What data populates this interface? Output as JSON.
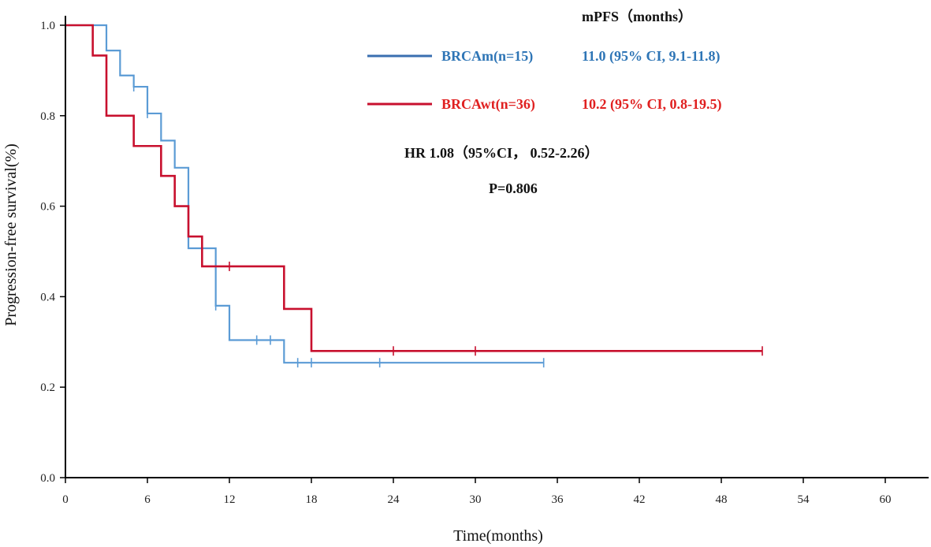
{
  "chart_data": {
    "type": "line",
    "subtype": "kaplan-meier",
    "xlabel": "Time(months)",
    "ylabel": "Progression-free survival(%)",
    "xlim": [
      0,
      60
    ],
    "ylim": [
      0,
      1.0
    ],
    "xticks": [
      0,
      6,
      12,
      18,
      24,
      30,
      36,
      42,
      48,
      54,
      60
    ],
    "yticks": [
      "0.0",
      "0.2",
      "0.4",
      "0.6",
      "0.8",
      "1.0"
    ],
    "grid": false,
    "series": [
      {
        "name": "BRCAm(n=15)",
        "color": "#5b9bd5",
        "steps": [
          [
            0,
            1.0
          ],
          [
            3,
            0.944
          ],
          [
            4,
            0.889
          ],
          [
            5,
            0.864
          ],
          [
            6,
            0.805
          ],
          [
            7,
            0.745
          ],
          [
            8,
            0.685
          ],
          [
            9,
            0.507
          ],
          [
            11,
            0.38
          ],
          [
            12,
            0.304
          ],
          [
            16,
            0.254
          ]
        ],
        "end": 35,
        "censored": [
          [
            5,
            0.864
          ],
          [
            6,
            0.805
          ],
          [
            10,
            0.507
          ],
          [
            11,
            0.38
          ],
          [
            14,
            0.304
          ],
          [
            15,
            0.304
          ],
          [
            17,
            0.254
          ],
          [
            18,
            0.254
          ],
          [
            23,
            0.254
          ],
          [
            35,
            0.254
          ]
        ]
      },
      {
        "name": "BRCAwt(n=36)",
        "color": "#c8102e",
        "steps": [
          [
            0,
            1.0
          ],
          [
            2,
            0.933
          ],
          [
            3,
            0.8
          ],
          [
            5,
            0.733
          ],
          [
            7,
            0.667
          ],
          [
            8,
            0.6
          ],
          [
            9,
            0.533
          ],
          [
            10,
            0.467
          ],
          [
            16,
            0.373
          ],
          [
            18,
            0.28
          ]
        ],
        "end": 51,
        "censored": [
          [
            12,
            0.467
          ],
          [
            24,
            0.28
          ],
          [
            30,
            0.28
          ],
          [
            51,
            0.28
          ]
        ]
      }
    ],
    "annotations": {
      "mpfs_header": "mPFS（months）",
      "legend": [
        {
          "label": "BRCAm(n=15)",
          "mpfs": "11.0 (95% CI, 9.1-11.8)",
          "line_color": "#3a6fb0",
          "text_color": "#2e75b6"
        },
        {
          "label": "BRCAwt(n=36)",
          "mpfs": "10.2 (95% CI, 0.8-19.5)",
          "line_color": "#c8102e",
          "text_color": "#e02020"
        }
      ],
      "hr": "HR 1.08（95%CI， 0.52-2.26）",
      "p": "P=0.806"
    }
  }
}
